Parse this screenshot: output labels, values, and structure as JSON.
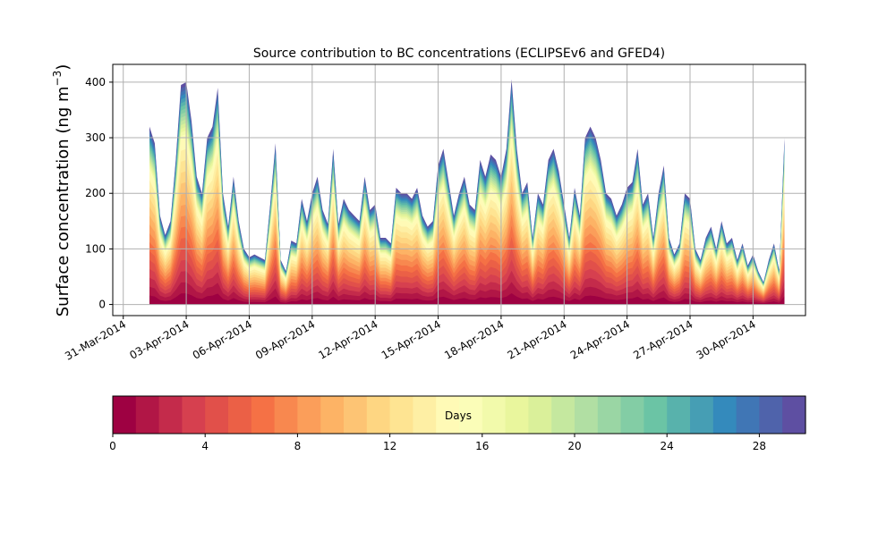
{
  "chart_data": [
    {
      "type": "area",
      "title": "Source contribution to BC concentrations (ECLIPSEv6 and GFED4)",
      "ylabel_main": "Surface concentration (ng m",
      "ylabel_sup": "−3",
      "ylabel_close": ")",
      "xlabel": "",
      "x_ticks": [
        "31-Mar-2014",
        "03-Apr-2014",
        "06-Apr-2014",
        "09-Apr-2014",
        "12-Apr-2014",
        "15-Apr-2014",
        "18-Apr-2014",
        "21-Apr-2014",
        "24-Apr-2014",
        "27-Apr-2014",
        "30-Apr-2014"
      ],
      "y_ticks": [
        "0",
        "100",
        "200",
        "300",
        "400"
      ],
      "ylim": [
        -20,
        432
      ],
      "xlim_days_from_31mar": [
        -0.5,
        32.5
      ],
      "grid": true,
      "stack_colors_scale": "Spectral (red = 0 days, blue = 30 days)",
      "total_concentration_series": {
        "x": [
          "2014-04-01T06",
          "2014-04-01T12",
          "2014-04-01T18",
          "2014-04-02T00",
          "2014-04-02T06",
          "2014-04-02T12",
          "2014-04-02T18",
          "2014-04-03T00",
          "2014-04-03T06",
          "2014-04-03T12",
          "2014-04-03T18",
          "2014-04-04T00",
          "2014-04-04T06",
          "2014-04-04T12",
          "2014-04-04T18",
          "2014-04-05T00",
          "2014-04-05T06",
          "2014-04-05T12",
          "2014-04-05T18",
          "2014-04-06T00",
          "2014-04-06T06",
          "2014-04-06T12",
          "2014-04-06T18",
          "2014-04-07T00",
          "2014-04-07T06",
          "2014-04-07T12",
          "2014-04-07T18",
          "2014-04-08T00",
          "2014-04-08T06",
          "2014-04-08T12",
          "2014-04-08T18",
          "2014-04-09T00",
          "2014-04-09T06",
          "2014-04-09T12",
          "2014-04-09T18",
          "2014-04-10T00",
          "2014-04-10T06",
          "2014-04-10T12",
          "2014-04-10T18",
          "2014-04-11T00",
          "2014-04-11T06",
          "2014-04-11T12",
          "2014-04-11T18",
          "2014-04-12T00",
          "2014-04-12T06",
          "2014-04-12T12",
          "2014-04-12T18",
          "2014-04-13T00",
          "2014-04-13T06",
          "2014-04-13T12",
          "2014-04-13T18",
          "2014-04-14T00",
          "2014-04-14T06",
          "2014-04-14T12",
          "2014-04-14T18",
          "2014-04-15T00",
          "2014-04-15T06",
          "2014-04-15T12",
          "2014-04-15T18",
          "2014-04-16T00",
          "2014-04-16T06",
          "2014-04-16T12",
          "2014-04-16T18",
          "2014-04-17T00",
          "2014-04-17T06",
          "2014-04-17T12",
          "2014-04-17T18",
          "2014-04-18T00",
          "2014-04-18T06",
          "2014-04-18T12",
          "2014-04-18T18",
          "2014-04-19T00",
          "2014-04-19T06",
          "2014-04-19T12",
          "2014-04-19T18",
          "2014-04-20T00",
          "2014-04-20T06",
          "2014-04-20T12",
          "2014-04-20T18",
          "2014-04-21T00",
          "2014-04-21T06",
          "2014-04-21T12",
          "2014-04-21T18",
          "2014-04-22T00",
          "2014-04-22T06",
          "2014-04-22T12",
          "2014-04-22T18",
          "2014-04-23T00",
          "2014-04-23T06",
          "2014-04-23T12",
          "2014-04-23T18",
          "2014-04-24T00",
          "2014-04-24T06",
          "2014-04-24T12",
          "2014-04-24T18",
          "2014-04-25T00",
          "2014-04-25T06",
          "2014-04-25T12",
          "2014-04-25T18",
          "2014-04-26T00",
          "2014-04-26T06",
          "2014-04-26T12",
          "2014-04-26T18",
          "2014-04-27T00",
          "2014-04-27T06",
          "2014-04-27T12",
          "2014-04-27T18",
          "2014-04-28T00",
          "2014-04-28T06",
          "2014-04-28T12",
          "2014-04-28T18",
          "2014-04-29T00",
          "2014-04-29T06",
          "2014-04-29T12",
          "2014-04-29T18",
          "2014-04-30T00",
          "2014-04-30T06",
          "2014-04-30T12",
          "2014-04-30T18",
          "2014-05-01T00",
          "2014-05-01T06",
          "2014-05-01T12"
        ],
        "y": [
          320,
          290,
          160,
          125,
          150,
          260,
          395,
          400,
          330,
          230,
          200,
          300,
          320,
          390,
          200,
          140,
          230,
          150,
          100,
          85,
          90,
          85,
          80,
          180,
          290,
          80,
          60,
          115,
          110,
          190,
          150,
          200,
          230,
          170,
          145,
          280,
          145,
          190,
          170,
          160,
          150,
          230,
          170,
          180,
          120,
          120,
          110,
          210,
          200,
          200,
          190,
          210,
          160,
          140,
          150,
          250,
          280,
          220,
          160,
          200,
          230,
          180,
          170,
          260,
          230,
          270,
          260,
          230,
          280,
          405,
          280,
          200,
          220,
          120,
          200,
          180,
          260,
          280,
          240,
          180,
          120,
          210,
          160,
          300,
          320,
          300,
          260,
          200,
          190,
          160,
          180,
          210,
          220,
          280,
          180,
          200,
          120,
          200,
          250,
          120,
          90,
          110,
          200,
          190,
          100,
          80,
          120,
          140,
          100,
          150,
          110,
          120,
          80,
          110,
          70,
          90,
          60,
          40,
          80,
          110,
          60,
          300
        ]
      }
    },
    {
      "type": "heatmap",
      "inline_label": "Days",
      "ticks": [
        "0",
        "4",
        "8",
        "12",
        "16",
        "20",
        "24",
        "28"
      ],
      "range": [
        0,
        30
      ],
      "segments": 30
    }
  ]
}
